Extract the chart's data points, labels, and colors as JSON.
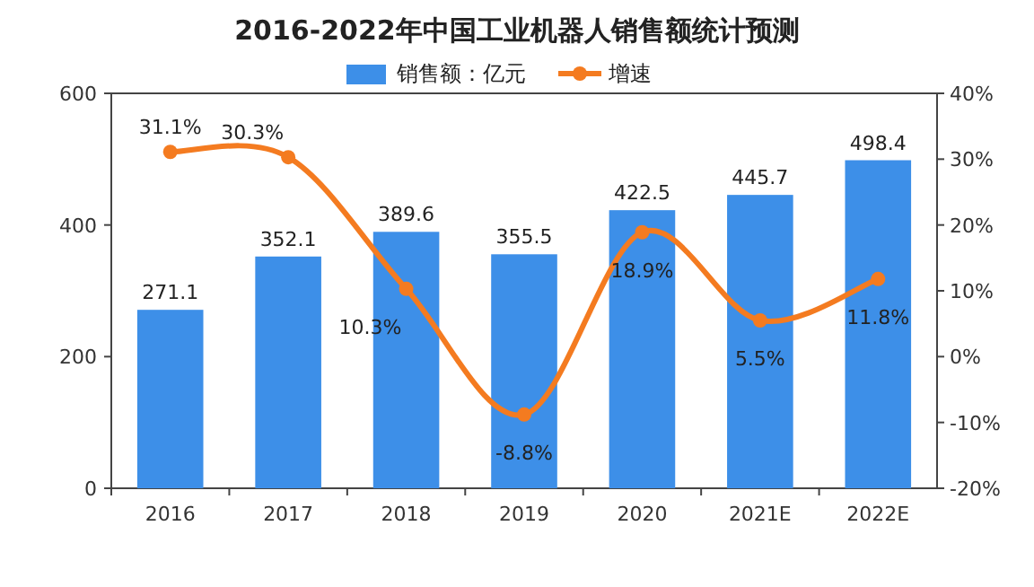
{
  "chart_data": {
    "type": "bar",
    "title": "2016-2022年中国工业机器人销售额统计预测",
    "categories": [
      "2016",
      "2017",
      "2018",
      "2019",
      "2020",
      "2021E",
      "2022E"
    ],
    "series": [
      {
        "name": "销售额：亿元",
        "color": "#3d8fe8",
        "values": [
          271.1,
          352.1,
          389.6,
          355.5,
          422.5,
          445.7,
          498.4
        ],
        "value_labels": [
          "271.1",
          "352.1",
          "389.6",
          "355.5",
          "422.5",
          "445.7",
          "498.4"
        ]
      },
      {
        "name": "增速",
        "type": "line",
        "axis": "y2",
        "color": "#f47b20",
        "marker": "circle",
        "values": [
          31.1,
          30.3,
          10.3,
          -8.8,
          18.9,
          5.5,
          11.8
        ],
        "value_labels": [
          "31.1%",
          "30.3%",
          "10.3%",
          "-8.8%",
          "18.9%",
          "5.5%",
          "11.8%"
        ]
      }
    ],
    "ylim": [
      0,
      600
    ],
    "yticks": [
      0,
      200,
      400,
      600
    ],
    "y2lim": [
      -20,
      40
    ],
    "y2ticks": [
      {
        "value": -20,
        "label": "-20%"
      },
      {
        "value": -10,
        "label": "-10%"
      },
      {
        "value": 0,
        "label": "0%"
      },
      {
        "value": 10,
        "label": "10%"
      },
      {
        "value": 20,
        "label": "20%"
      },
      {
        "value": 30,
        "label": "30%"
      },
      {
        "value": 40,
        "label": "40%"
      }
    ],
    "legend": "top"
  }
}
